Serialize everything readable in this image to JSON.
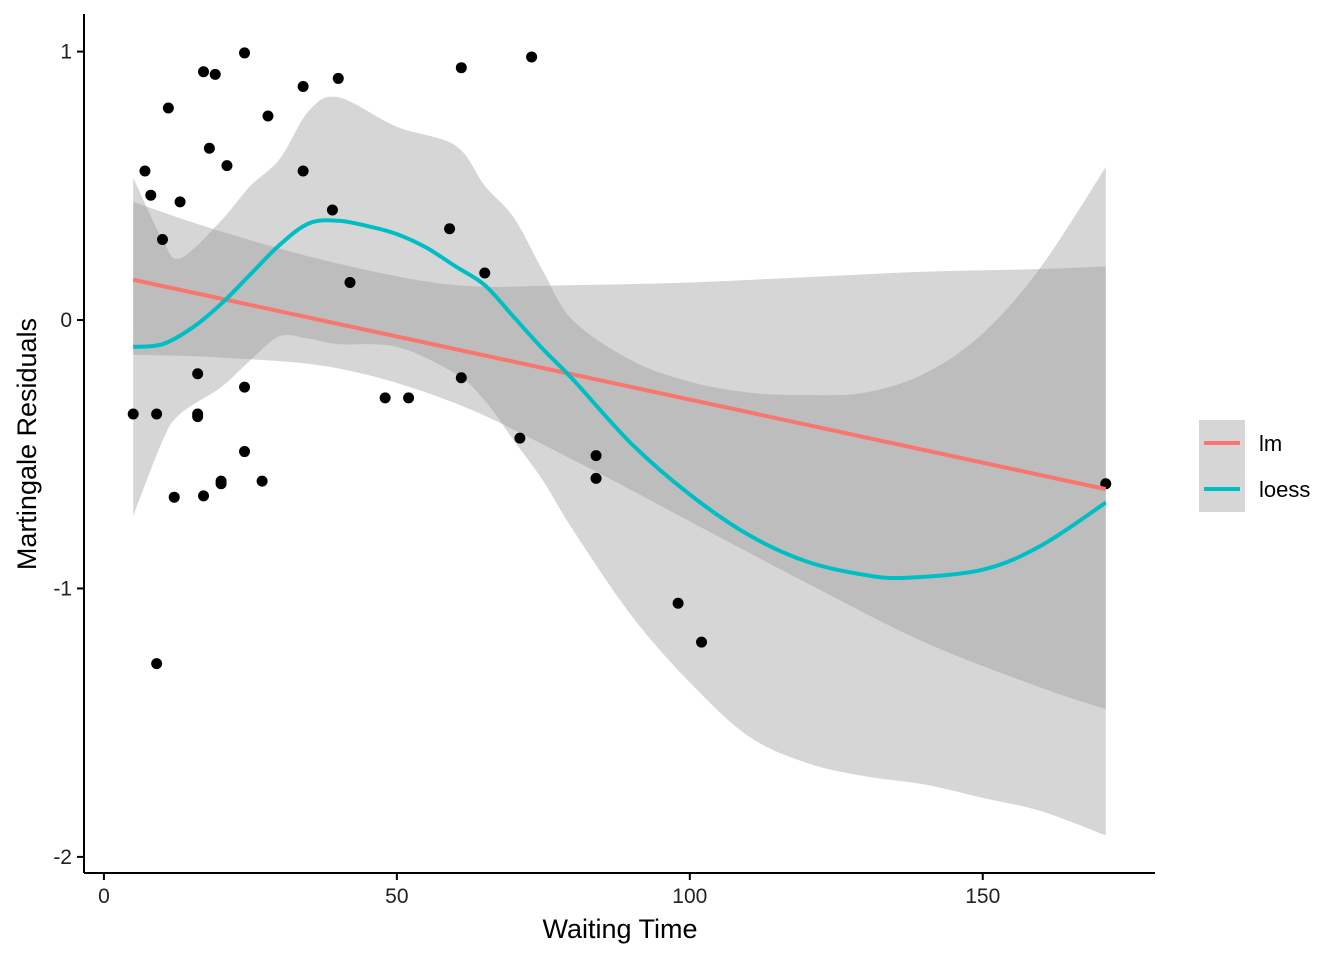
{
  "chart_data": {
    "type": "scatter",
    "xlabel": "Waiting Time",
    "ylabel": "Martingale Residuals",
    "xlim": [
      -3.4,
      179.4
    ],
    "ylim": [
      -2.06,
      1.14
    ],
    "xticks": [
      0,
      50,
      100,
      150
    ],
    "yticks": [
      -2,
      -1,
      0,
      1
    ],
    "grid": false,
    "legend": {
      "placement": "right",
      "entries": [
        {
          "label": "lm",
          "color": "#F8766D"
        },
        {
          "label": "loess",
          "color": "#00BFC4"
        }
      ]
    },
    "points": [
      [
        5,
        -0.35
      ],
      [
        7,
        0.555
      ],
      [
        8,
        0.465
      ],
      [
        9,
        -0.35
      ],
      [
        9,
        -1.28
      ],
      [
        10,
        0.3
      ],
      [
        11,
        0.79
      ],
      [
        12,
        -0.66
      ],
      [
        13,
        0.44
      ],
      [
        16,
        -0.2
      ],
      [
        16,
        -0.35
      ],
      [
        16,
        -0.36
      ],
      [
        17,
        0.925
      ],
      [
        17,
        -0.655
      ],
      [
        18,
        0.64
      ],
      [
        19,
        0.915
      ],
      [
        20,
        -0.6
      ],
      [
        20,
        -0.61
      ],
      [
        21,
        0.575
      ],
      [
        24,
        0.995
      ],
      [
        24,
        -0.25
      ],
      [
        24,
        -0.49
      ],
      [
        27,
        -0.6
      ],
      [
        28,
        0.76
      ],
      [
        34,
        0.87
      ],
      [
        34,
        0.555
      ],
      [
        39,
        0.41
      ],
      [
        40,
        0.9
      ],
      [
        42,
        0.14
      ],
      [
        48,
        -0.29
      ],
      [
        52,
        -0.29
      ],
      [
        59,
        0.34
      ],
      [
        61,
        0.94
      ],
      [
        61,
        -0.215
      ],
      [
        65,
        0.175
      ],
      [
        71,
        -0.44
      ],
      [
        73,
        0.98
      ],
      [
        84,
        -0.505
      ],
      [
        84,
        -0.59
      ],
      [
        98,
        -1.055
      ],
      [
        102,
        -1.2
      ],
      [
        171,
        -0.61
      ]
    ],
    "series": [
      {
        "name": "lm",
        "color": "#F8766D",
        "x": [
          5,
          171
        ],
        "y": [
          0.15,
          -0.63
        ],
        "ribbon_x": [
          5,
          20,
          40,
          60,
          80,
          100,
          120,
          140,
          160,
          171
        ],
        "ribbon_upper": [
          0.44,
          0.33,
          0.21,
          0.13,
          0.13,
          0.14,
          0.16,
          0.18,
          0.19,
          0.2
        ],
        "ribbon_lower": [
          -0.13,
          -0.14,
          -0.18,
          -0.31,
          -0.52,
          -0.75,
          -0.98,
          -1.2,
          -1.37,
          -1.45
        ]
      },
      {
        "name": "loess",
        "color": "#00BFC4",
        "x": [
          5,
          10,
          15,
          20,
          25,
          30,
          35,
          40,
          45,
          50,
          55,
          60,
          65,
          70,
          75,
          80,
          90,
          100,
          110,
          120,
          130,
          137,
          150,
          160,
          171
        ],
        "y": [
          -0.1,
          -0.09,
          -0.03,
          0.06,
          0.17,
          0.28,
          0.36,
          0.37,
          0.35,
          0.32,
          0.27,
          0.2,
          0.13,
          0.01,
          -0.11,
          -0.22,
          -0.46,
          -0.65,
          -0.8,
          -0.9,
          -0.95,
          -0.96,
          -0.93,
          -0.84,
          -0.68
        ],
        "ribbon_x": [
          5,
          10,
          13,
          20,
          25,
          30,
          35,
          40,
          50,
          60,
          65,
          70,
          75,
          80,
          90,
          100,
          110,
          120,
          130,
          140,
          150,
          160,
          171
        ],
        "ribbon_upper": [
          0.53,
          0.3,
          0.23,
          0.37,
          0.5,
          0.6,
          0.78,
          0.83,
          0.72,
          0.65,
          0.5,
          0.38,
          0.18,
          0.0,
          -0.15,
          -0.23,
          -0.27,
          -0.28,
          -0.27,
          -0.2,
          -0.05,
          0.2,
          0.57
        ],
        "ribbon_lower": [
          -0.73,
          -0.45,
          -0.35,
          -0.25,
          -0.15,
          -0.06,
          -0.07,
          -0.09,
          -0.1,
          -0.2,
          -0.3,
          -0.45,
          -0.6,
          -0.78,
          -1.1,
          -1.35,
          -1.55,
          -1.65,
          -1.7,
          -1.73,
          -1.78,
          -1.83,
          -1.92
        ]
      }
    ]
  }
}
